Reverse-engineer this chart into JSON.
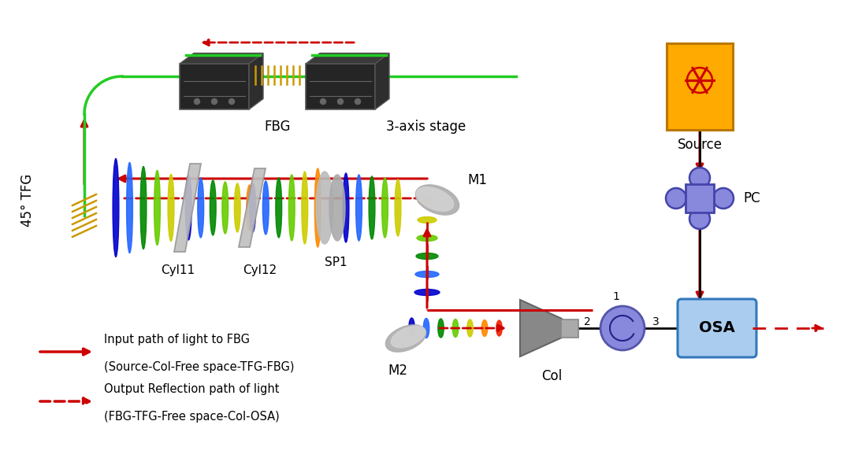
{
  "bg_color": "#ffffff",
  "RED": "#cc0000",
  "GREEN": "#22cc22",
  "BLACK": "#000000",
  "GOLD": "#cc9900",
  "PC_COLOR": "#8888dd",
  "OSA_COLOR": "#aaccee",
  "SOURCE_COLOR": "#ffaa00",
  "LENS_COLOR": "#c0c0c0",
  "DARK_BOX": "#252525",
  "beam_colors": [
    "#0000cc",
    "#2266ff",
    "#008800",
    "#66cc00",
    "#cccc00",
    "#ff8800",
    "#ee2200"
  ],
  "labels": {
    "FBG": "FBG",
    "stage": "3-axis stage",
    "TFG": "45° TFG",
    "Cyl11": "Cyl11",
    "Cyl12": "Cyl12",
    "SP1": "SP1",
    "M1": "M1",
    "M2": "M2",
    "Col": "Col",
    "PC": "PC",
    "OSA": "OSA",
    "Source": "Source",
    "legend1_title": "Input path of light to FBG",
    "legend1_sub": "(Source-Col-Free space-TFG-FBG)",
    "legend2_title": "Output Reflection path of light",
    "legend2_sub": "(FBG-TFG-Free space-Col-OSA)",
    "num1": "1",
    "num2": "2",
    "num3": "3"
  },
  "figsize": [
    10.8,
    5.82
  ],
  "dpi": 100,
  "xlim": [
    0,
    10.8
  ],
  "ylim": [
    0,
    5.82
  ]
}
